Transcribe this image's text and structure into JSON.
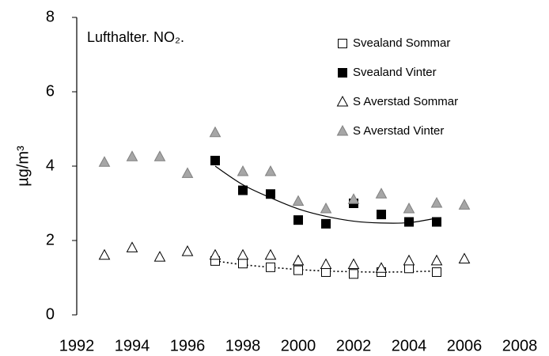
{
  "chart_data": {
    "type": "scatter",
    "title": "Lufthalter. NO₂.",
    "y_label": "µg/m³",
    "xlim": [
      1992,
      2008
    ],
    "xticks": [
      1992,
      1994,
      1996,
      1998,
      2000,
      2002,
      2004,
      2006,
      2008
    ],
    "ylim": [
      0,
      8
    ],
    "yticks": [
      0,
      2,
      4,
      6,
      8
    ],
    "grid": false,
    "legend": "top-right",
    "series": [
      {
        "name": "Svealand Sommar",
        "marker": "square",
        "color": "#ffffff",
        "edge": "#000000",
        "x": [
          1997,
          1998,
          1999,
          2000,
          2001,
          2002,
          2003,
          2004,
          2005
        ],
        "values": [
          1.45,
          1.38,
          1.28,
          1.2,
          1.15,
          1.1,
          1.15,
          1.25,
          1.15
        ],
        "trend": [
          1.45,
          1.35,
          1.28,
          1.22,
          1.18,
          1.16,
          1.15,
          1.16,
          1.18
        ],
        "trend_style": "dotted"
      },
      {
        "name": "Svealand Vinter",
        "marker": "square",
        "color": "#000000",
        "edge": "#000000",
        "x": [
          1997,
          1998,
          1999,
          2000,
          2001,
          2002,
          2003,
          2004,
          2005
        ],
        "values": [
          4.15,
          3.35,
          3.25,
          2.55,
          2.45,
          3.0,
          2.7,
          2.5,
          2.5
        ],
        "trend": [
          4.0,
          3.5,
          3.15,
          2.85,
          2.65,
          2.52,
          2.47,
          2.48,
          2.6
        ],
        "trend_style": "solid"
      },
      {
        "name": "S Averstad Sommar",
        "marker": "triangle",
        "color": "#ffffff",
        "edge": "#000000",
        "x": [
          1993,
          1994,
          1995,
          1996,
          1997,
          1998,
          1999,
          2000,
          2001,
          2002,
          2003,
          2004,
          2005,
          2006
        ],
        "values": [
          1.6,
          1.8,
          1.55,
          1.7,
          1.6,
          1.6,
          1.6,
          1.45,
          1.35,
          1.35,
          1.25,
          1.45,
          1.45,
          1.5
        ]
      },
      {
        "name": "S Averstad Vinter",
        "marker": "triangle",
        "color": "#a6a6a6",
        "edge": "#808080",
        "x": [
          1993,
          1994,
          1995,
          1996,
          1997,
          1998,
          1999,
          2000,
          2001,
          2002,
          2003,
          2004,
          2005,
          2006
        ],
        "values": [
          4.1,
          4.25,
          4.25,
          3.8,
          4.9,
          3.85,
          3.85,
          3.05,
          2.85,
          3.1,
          3.25,
          2.85,
          3.0,
          2.95
        ]
      }
    ]
  }
}
